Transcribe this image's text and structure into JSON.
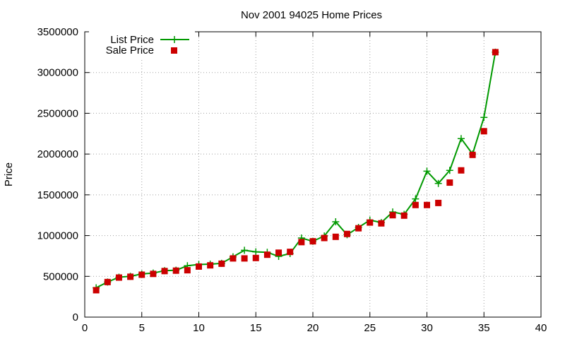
{
  "chart_data": {
    "type": "line",
    "title": "Nov 2001 94025 Home Prices",
    "ylabel": "Price",
    "xlabel": "",
    "xlim": [
      0,
      40
    ],
    "ylim": [
      0,
      3500000
    ],
    "x_ticks": [
      0,
      5,
      10,
      15,
      20,
      25,
      30,
      35,
      40
    ],
    "y_ticks": [
      0,
      500000,
      1000000,
      1500000,
      2000000,
      2500000,
      3000000,
      3500000
    ],
    "grid": true,
    "legend_position": "top-left",
    "series": [
      {
        "name": "List Price",
        "style": "line-with-plus",
        "color": "#009900",
        "x": [
          1,
          2,
          3,
          4,
          5,
          6,
          7,
          8,
          9,
          10,
          11,
          12,
          13,
          14,
          15,
          16,
          17,
          18,
          19,
          20,
          21,
          22,
          23,
          24,
          25,
          26,
          27,
          28,
          29,
          30,
          31,
          32,
          33,
          34,
          35,
          36
        ],
        "y": [
          360000,
          430000,
          490000,
          500000,
          530000,
          540000,
          570000,
          575000,
          630000,
          645000,
          650000,
          660000,
          740000,
          820000,
          800000,
          795000,
          745000,
          780000,
          970000,
          930000,
          995000,
          1170000,
          1010000,
          1100000,
          1190000,
          1160000,
          1290000,
          1260000,
          1450000,
          1790000,
          1640000,
          1800000,
          2190000,
          2000000,
          2450000,
          3250000
        ]
      },
      {
        "name": "Sale Price",
        "style": "points-square",
        "color": "#cc0000",
        "x": [
          1,
          2,
          3,
          4,
          5,
          6,
          7,
          8,
          9,
          10,
          11,
          12,
          13,
          14,
          15,
          16,
          17,
          18,
          19,
          20,
          21,
          22,
          23,
          24,
          25,
          26,
          27,
          28,
          29,
          30,
          31,
          32,
          33,
          34,
          35,
          36
        ],
        "y": [
          330000,
          430000,
          485000,
          495000,
          520000,
          530000,
          565000,
          570000,
          575000,
          620000,
          635000,
          655000,
          720000,
          720000,
          725000,
          765000,
          790000,
          800000,
          920000,
          930000,
          970000,
          985000,
          1020000,
          1090000,
          1160000,
          1150000,
          1250000,
          1245000,
          1375000,
          1375000,
          1400000,
          1650000,
          1800000,
          1990000,
          2280000,
          3250000
        ]
      }
    ]
  }
}
